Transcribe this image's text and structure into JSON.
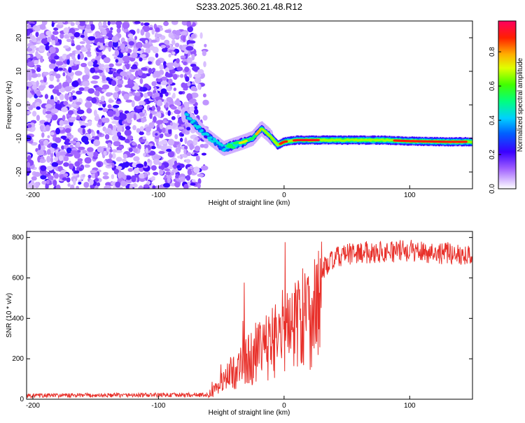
{
  "title": "S233.2025.360.21.48.R12",
  "chart_data": [
    {
      "type": "heatmap",
      "xlabel": "Height of straight line (km)",
      "ylabel": "Frequency (Hz)",
      "xlim": [
        -205,
        150
      ],
      "ylim": [
        -25,
        25
      ],
      "xticks": [
        -200,
        -100,
        0,
        100
      ],
      "yticks": [
        -20,
        -10,
        0,
        10,
        20
      ],
      "colorbar": {
        "label": "Normalized spectral amplitude",
        "ticks": [
          "0.0",
          "0.2",
          "0.4",
          "0.6",
          "0.8"
        ],
        "tick_values": [
          0.0,
          0.2,
          0.4,
          0.6,
          0.8
        ],
        "range": [
          0,
          0.98
        ]
      },
      "ridge": {
        "x": [
          -78,
          -70,
          -62,
          -55,
          -48,
          -40,
          -32,
          -25,
          -18,
          -12,
          -5,
          0,
          10,
          25,
          50,
          80,
          100,
          130,
          150
        ],
        "y": [
          -3,
          -6,
          -9,
          -11,
          -13,
          -12,
          -11,
          -10,
          -7,
          -9,
          -12,
          -11,
          -10.5,
          -10.5,
          -10.5,
          -10.5,
          -10.8,
          -11,
          -11
        ]
      }
    },
    {
      "type": "line",
      "xlabel": "Height of straight line (km)",
      "ylabel": "SNR (10 * v/v)",
      "xlim": [
        -205,
        150
      ],
      "ylim": [
        0,
        830
      ],
      "xticks": [
        -200,
        -100,
        0,
        100
      ],
      "yticks": [
        0,
        200,
        400,
        600,
        800
      ],
      "color": "#e8302a",
      "profile": {
        "x": [
          -205,
          -120,
          -62,
          -55,
          -45,
          -35,
          -25,
          -15,
          -5,
          5,
          15,
          25,
          35,
          45,
          60,
          80,
          100,
          120,
          150
        ],
        "y": [
          18,
          20,
          22,
          60,
          150,
          220,
          280,
          330,
          420,
          480,
          540,
          610,
          670,
          710,
          725,
          730,
          735,
          725,
          715
        ]
      }
    }
  ]
}
